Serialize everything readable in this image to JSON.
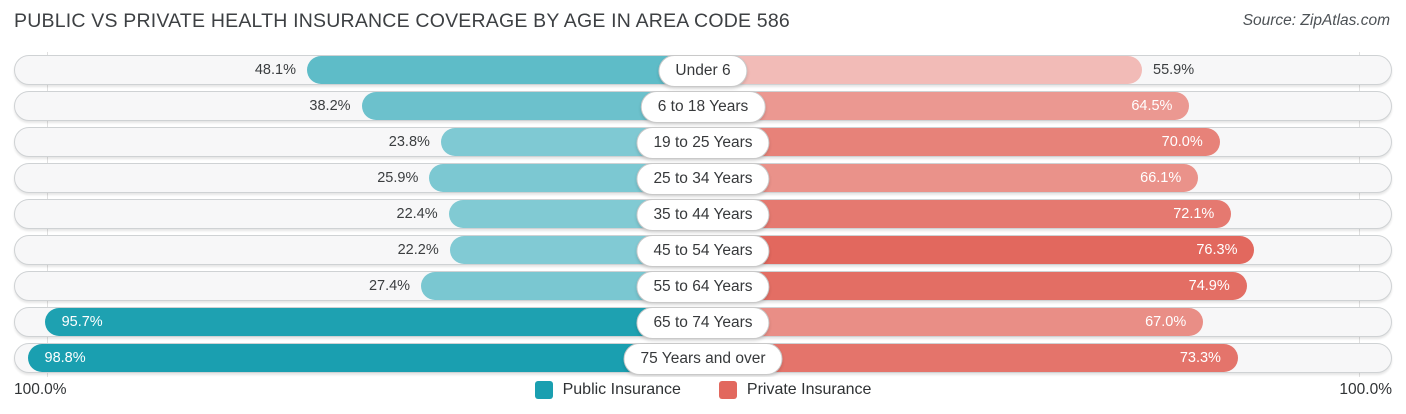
{
  "title": "PUBLIC VS PRIVATE HEALTH INSURANCE COVERAGE BY AGE IN AREA CODE 586",
  "source": "Source: ZipAtlas.com",
  "chart_data": {
    "type": "bar",
    "variant": "diverging-horizontal",
    "title": "Public vs Private Health Insurance Coverage by Age in Area Code 586",
    "categories": [
      "Under 6",
      "6 to 18 Years",
      "19 to 25 Years",
      "25 to 34 Years",
      "35 to 44 Years",
      "45 to 54 Years",
      "55 to 64 Years",
      "65 to 74 Years",
      "75 Years and over"
    ],
    "series": [
      {
        "name": "Public Insurance",
        "color": "#1a9fb0",
        "direction": "left",
        "values": [
          48.1,
          38.2,
          23.8,
          25.9,
          22.4,
          22.2,
          27.4,
          95.7,
          98.8
        ]
      },
      {
        "name": "Private Insurance",
        "color": "#e2685e",
        "direction": "right",
        "values": [
          55.9,
          64.5,
          70.0,
          66.1,
          72.1,
          76.3,
          74.9,
          67.0,
          73.3
        ]
      }
    ],
    "value_suffix": "%",
    "axis": {
      "left_label": "100.0%",
      "right_label": "100.0%",
      "max": 100
    },
    "legend": [
      "Public Insurance",
      "Private Insurance"
    ],
    "legend_position": "bottom-center",
    "grid": "two faint vertical lines at 100% marks"
  }
}
